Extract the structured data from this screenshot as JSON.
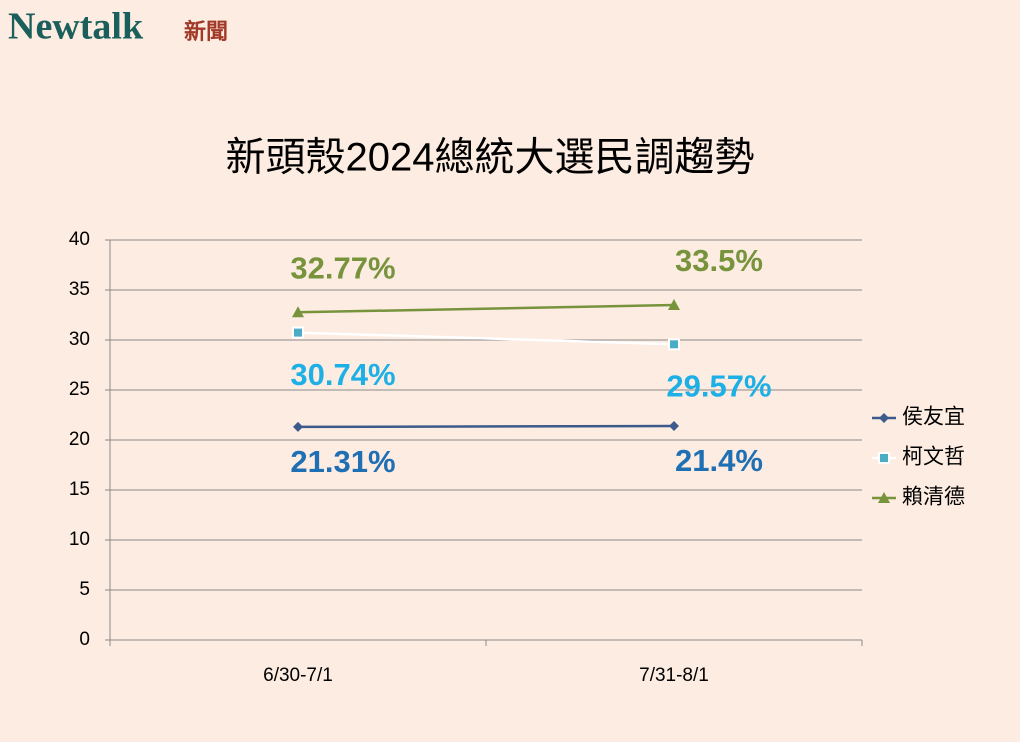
{
  "header": {
    "logo": "Newtalk",
    "logo_sub": "新聞"
  },
  "chart_data": {
    "type": "line",
    "title": "新頭殼2024總統大選民調趨勢",
    "categories": [
      "6/30-7/1",
      "7/31-8/1"
    ],
    "series": [
      {
        "name": "侯友宜",
        "color": "#3c5a8c",
        "label_color": "#1f6fb5",
        "marker": "diamond",
        "values": [
          21.31,
          21.4
        ],
        "value_labels": [
          "21.31%",
          "21.4%"
        ]
      },
      {
        "name": "柯文哲",
        "color": "#ffffff",
        "marker_color": "#4bacc6",
        "label_color": "#1cb0e6",
        "marker": "square",
        "values": [
          30.74,
          29.57
        ],
        "value_labels": [
          "30.74%",
          "29.57%"
        ]
      },
      {
        "name": "賴清德",
        "color": "#77933c",
        "label_color": "#77933c",
        "marker": "triangle",
        "values": [
          32.77,
          33.5
        ],
        "value_labels": [
          "32.77%",
          "33.5%"
        ]
      }
    ],
    "ylim": [
      0,
      40
    ],
    "yticks": [
      0,
      5,
      10,
      15,
      20,
      25,
      30,
      35,
      40
    ],
    "grid": true,
    "legend": "right"
  }
}
